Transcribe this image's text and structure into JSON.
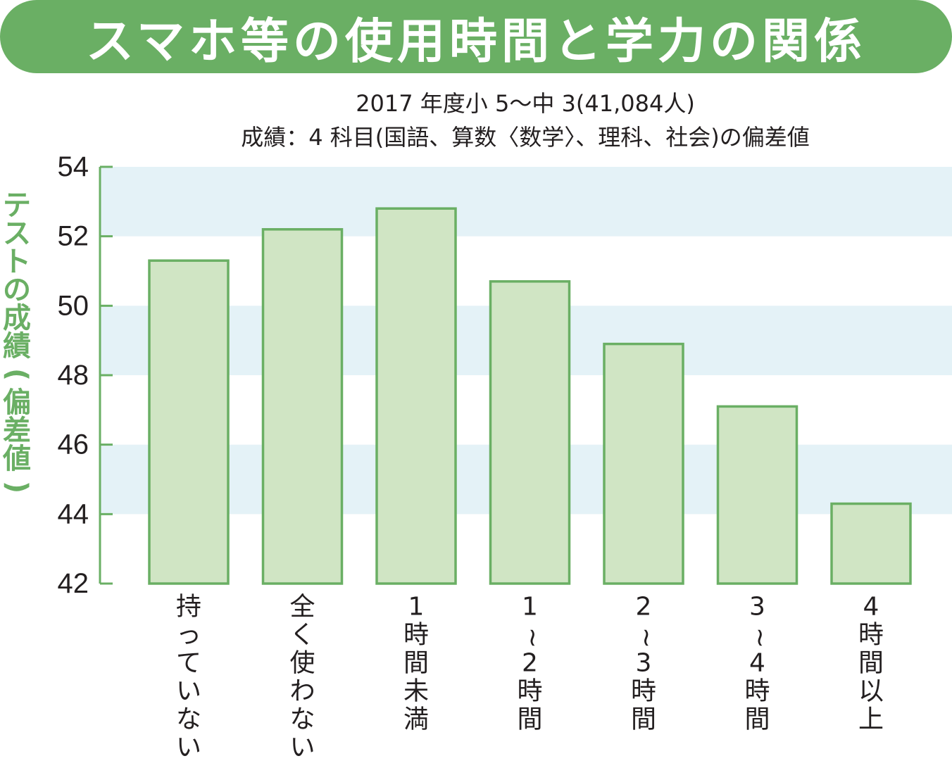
{
  "title": "スマホ等の使用時間と学力の関係",
  "subtitle_line1": "2017 年度小 5～中 3(41,084人)",
  "subtitle_line2": "成績：4 科目(国語、算数〈数学〉、理科、社会)の偏差値",
  "colors": {
    "accent": "#6aaf64",
    "bar_fill": "#d0e5c4",
    "bar_stroke": "#6aaf64",
    "band": "#e4f2f7",
    "text": "#231f20"
  },
  "chart_data": {
    "type": "bar",
    "title": "スマホ等の使用時間と学力の関係",
    "ylabel": "テストの成績(偏差値)",
    "xlabel": "",
    "ylim": [
      42,
      54
    ],
    "yticks": [
      42,
      44,
      46,
      48,
      50,
      52,
      54
    ],
    "grid": "alternating horizontal bands",
    "categories": [
      "持っていない",
      "全く使わない",
      "1時間未満",
      "1~2時間",
      "2~3時間",
      "3~4時間",
      "4時間以上"
    ],
    "values": [
      51.3,
      52.2,
      52.8,
      50.7,
      48.9,
      47.1,
      44.3
    ]
  }
}
